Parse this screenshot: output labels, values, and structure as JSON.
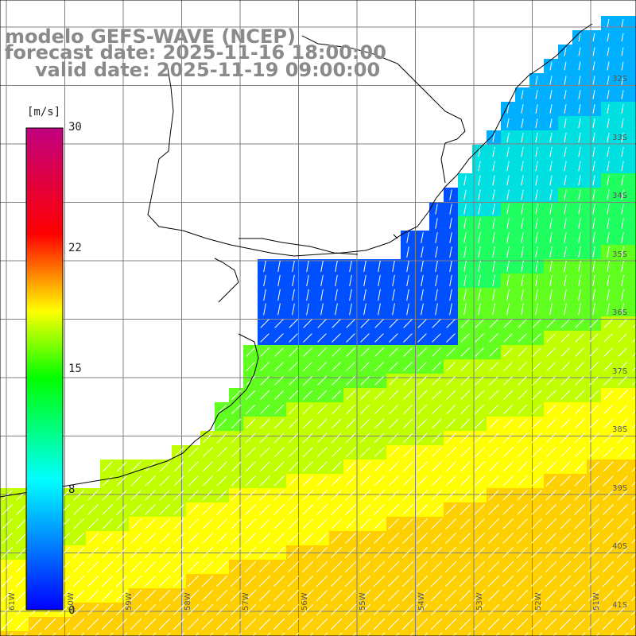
{
  "title": {
    "line1": "modelo GEFS-WAVE (NCEP)",
    "line2": "forecast date: 2025-11-16 18:00:00",
    "line3": "valid date: 2025-11-19 09:00:00"
  },
  "colorbar": {
    "unit": "[m/s]",
    "ticks": [
      "30",
      "22",
      "15",
      "8",
      "0"
    ],
    "colors": [
      "#0000ff",
      "#00ffff",
      "#00ff00",
      "#ffff00",
      "#ff0000",
      "#c00080"
    ]
  },
  "lat_labels": [
    "32S",
    "33S",
    "34S",
    "35S",
    "36S",
    "37S",
    "38S",
    "39S",
    "40S",
    "41S"
  ],
  "lon_labels": [
    "61W",
    "60W",
    "59W",
    "58W",
    "57W",
    "56W",
    "55W",
    "54W",
    "53W",
    "52W",
    "51W"
  ],
  "map_colors": {
    "land": "#ffffff",
    "coast": "#000000",
    "grid": "#808080"
  }
}
